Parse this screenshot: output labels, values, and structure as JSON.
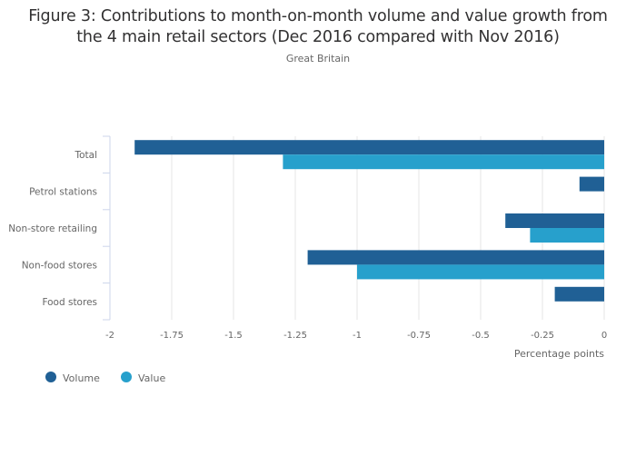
{
  "chart_data": {
    "type": "bar",
    "orientation": "horizontal",
    "title": "Figure 3: Contributions to month-on-month volume and value growth from the 4 main retail sectors (Dec 2016 compared with Nov 2016)",
    "title_lines": [
      "Figure 3: Contributions to month-on-month volume and value growth from",
      "the 4 main retail sectors (Dec 2016 compared with Nov 2016)"
    ],
    "subtitle": "Great Britain",
    "categories": [
      "Total",
      "Petrol stations",
      "Non-store retailing",
      "Non-food stores",
      "Food stores"
    ],
    "series": [
      {
        "name": "Volume",
        "color": "#206095",
        "values": [
          -1.9,
          -0.1,
          -0.4,
          -1.2,
          -0.2
        ]
      },
      {
        "name": "Value",
        "color": "#27a0cc",
        "values": [
          -1.3,
          null,
          -0.3,
          -1.0,
          null
        ]
      }
    ],
    "xlabel": "Percentage points",
    "ylabel": "",
    "xlim": [
      -2,
      0
    ],
    "x_ticks": [
      -2,
      -1.75,
      -1.5,
      -1.25,
      -1,
      -0.75,
      -0.5,
      -0.25,
      0
    ],
    "x_tick_labels": [
      "-2",
      "-1.75",
      "-1.5",
      "-1.25",
      "-1",
      "-0.75",
      "-0.5",
      "-0.25",
      "0"
    ],
    "grid": true,
    "legend": {
      "position": "bottom-left",
      "entries": [
        "Volume",
        "Value"
      ]
    }
  }
}
